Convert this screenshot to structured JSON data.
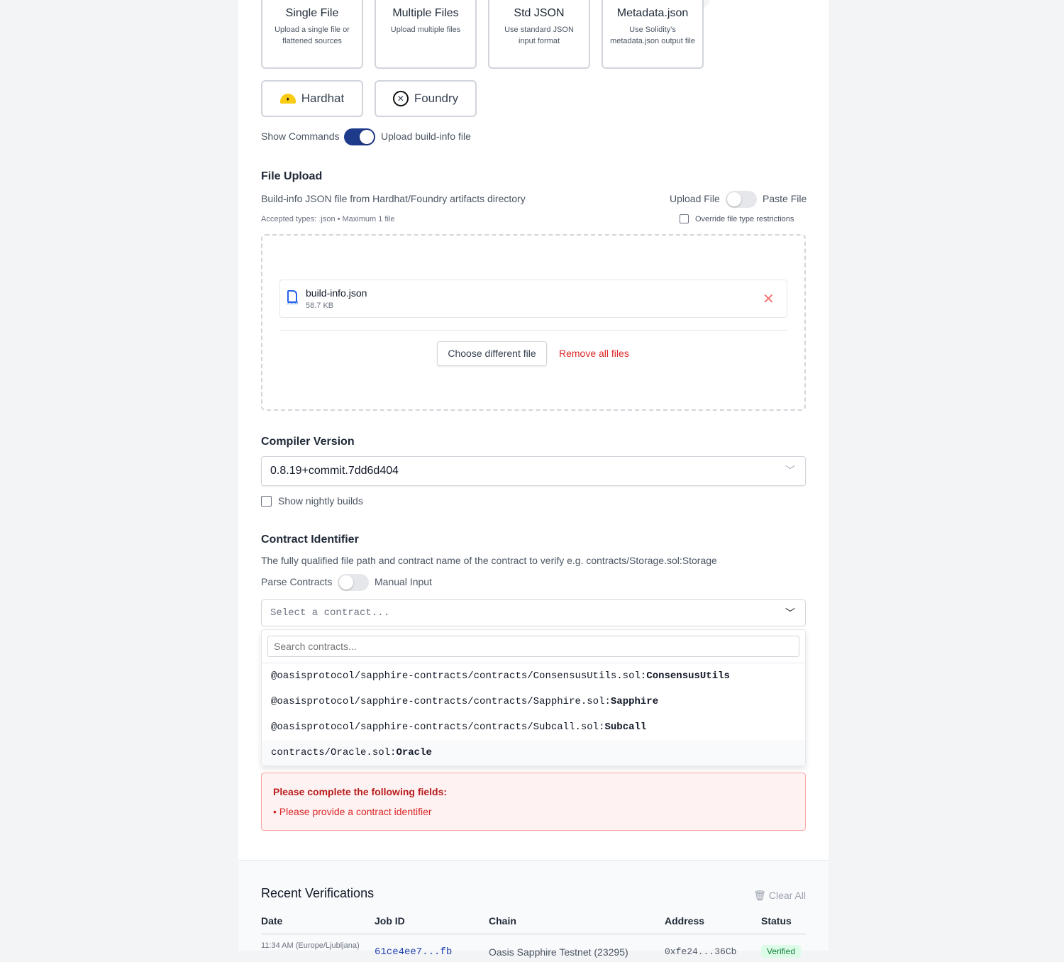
{
  "methods": [
    {
      "title": "Single File",
      "desc": "Upload a single file or flattened sources"
    },
    {
      "title": "Multiple Files",
      "desc": "Upload multiple files"
    },
    {
      "title": "Std JSON",
      "desc": "Use standard JSON input format"
    },
    {
      "title": "Metadata.json",
      "desc": "Use Solidity's metadata.json output file"
    }
  ],
  "frameworks": [
    {
      "label": "Hardhat",
      "icon": "hardhat-icon"
    },
    {
      "label": "Foundry",
      "icon": "foundry-icon"
    }
  ],
  "commands_toggle": {
    "left": "Show Commands",
    "right": "Upload build-info file",
    "on": true
  },
  "file_upload": {
    "title": "File Upload",
    "desc": "Build-info JSON file from Hardhat/Foundry artifacts directory",
    "mode_left": "Upload File",
    "mode_right": "Paste File",
    "accepted": "Accepted types: .json • Maximum 1 file",
    "override": "Override file type restrictions",
    "file": {
      "name": "build-info.json",
      "size": "58.7 KB",
      "icon_label": "JSON"
    },
    "choose": "Choose different file",
    "remove_all": "Remove all files"
  },
  "compiler": {
    "title": "Compiler Version",
    "value": "0.8.19+commit.7dd6d404",
    "nightly": "Show nightly builds"
  },
  "contract": {
    "title": "Contract Identifier",
    "desc": "The fully qualified file path and contract name of the contract to verify e.g. contracts/Storage.sol:Storage",
    "toggle_left": "Parse Contracts",
    "toggle_right": "Manual Input",
    "placeholder": "Select a contract...",
    "search_placeholder": "Search contracts...",
    "options": [
      {
        "path": "@oasisprotocol/sapphire-contracts/contracts/ConsensusUtils.sol:",
        "name": "ConsensusUtils"
      },
      {
        "path": "@oasisprotocol/sapphire-contracts/contracts/Sapphire.sol:",
        "name": "Sapphire"
      },
      {
        "path": "@oasisprotocol/sapphire-contracts/contracts/Subcall.sol:",
        "name": "Subcall"
      },
      {
        "path": "contracts/Oracle.sol:",
        "name": "Oracle"
      }
    ]
  },
  "error": {
    "title": "Please complete the following fields:",
    "items": [
      "• Please provide a contract identifier"
    ]
  },
  "recent": {
    "title": "Recent Verifications",
    "clear": "Clear All",
    "columns": [
      "Date",
      "Job ID",
      "Chain",
      "Address",
      "Status"
    ],
    "rows": [
      {
        "date": "11:34 AM (Europe/Ljubljana)",
        "job": "61ce4ee7...fb",
        "chain": "Oasis Sapphire Testnet (23295)",
        "address": "0xfe24...36Cb",
        "status": "Verified"
      }
    ]
  },
  "colors": {
    "accent": "#1e3a8a",
    "error": "#dc2626",
    "success_bg": "#dcfce7"
  }
}
